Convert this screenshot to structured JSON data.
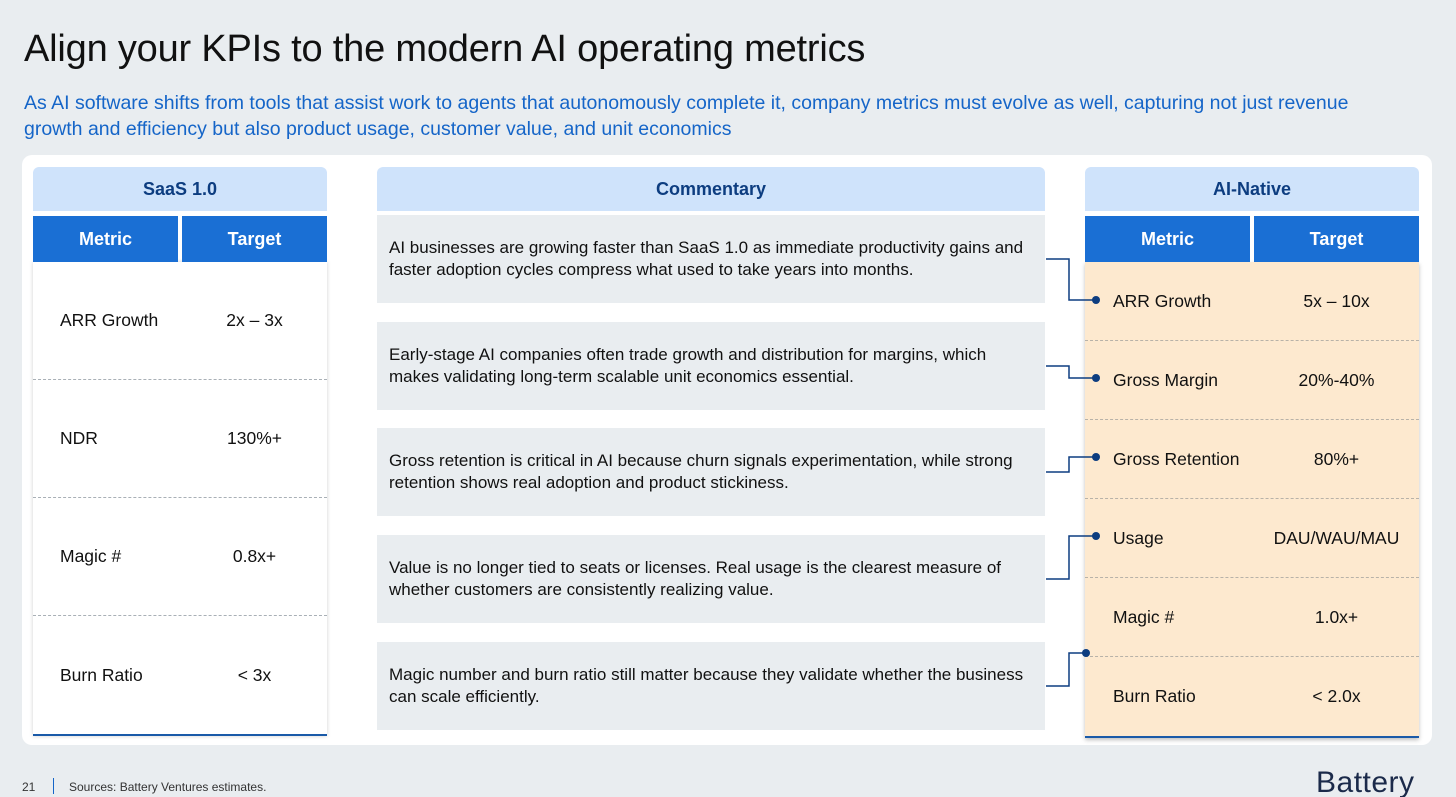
{
  "title": "Align your KPIs to the modern AI operating metrics",
  "subtitle": "As AI software shifts from tools that assist work to agents that autonomously complete it, company metrics must evolve as well, capturing not just revenue growth and efficiency but also product usage, customer value, and unit economics",
  "saas": {
    "header": "SaaS 1.0",
    "col_metric": "Metric",
    "col_target": "Target",
    "rows": [
      {
        "metric": "ARR Growth",
        "target": "2x – 3x"
      },
      {
        "metric": "NDR",
        "target": "130%+"
      },
      {
        "metric": "Magic #",
        "target": "0.8x+"
      },
      {
        "metric": "Burn Ratio",
        "target": "< 3x"
      }
    ]
  },
  "commentary": {
    "header": "Commentary",
    "items": [
      "AI businesses are growing faster than SaaS 1.0 as immediate productivity gains and faster adoption cycles compress what used to take years into months.",
      "Early-stage AI companies often trade growth and distribution for margins, which makes validating long-term scalable unit economics essential.",
      "Gross retention is critical in AI because churn signals experimentation, while strong retention shows real adoption and product stickiness.",
      "Value is no longer tied to seats or licenses.  Real usage is the clearest measure of whether customers are consistently realizing value.",
      "Magic number and burn ratio still matter because they validate whether the business can scale efficiently."
    ]
  },
  "ai_native": {
    "header": "AI-Native",
    "col_metric": "Metric",
    "col_target": "Target",
    "rows": [
      {
        "metric": "ARR Growth",
        "target": "5x – 10x"
      },
      {
        "metric": "Gross Margin",
        "target": "20%-40%"
      },
      {
        "metric": "Gross Retention",
        "target": "80%+"
      },
      {
        "metric": "Usage",
        "target": "DAU/WAU/MAU"
      },
      {
        "metric": "Magic #",
        "target": "1.0x+"
      },
      {
        "metric": "Burn Ratio",
        "target": "< 2.0x"
      }
    ]
  },
  "footer": {
    "page_number": "21",
    "sources": "Sources: Battery Ventures estimates.",
    "logo": "Battery"
  },
  "colors": {
    "accent_blue": "#1a6fd4",
    "header_band": "#cfe3fb",
    "ai_body": "#fde9cf",
    "connector": "#0d3d80"
  }
}
